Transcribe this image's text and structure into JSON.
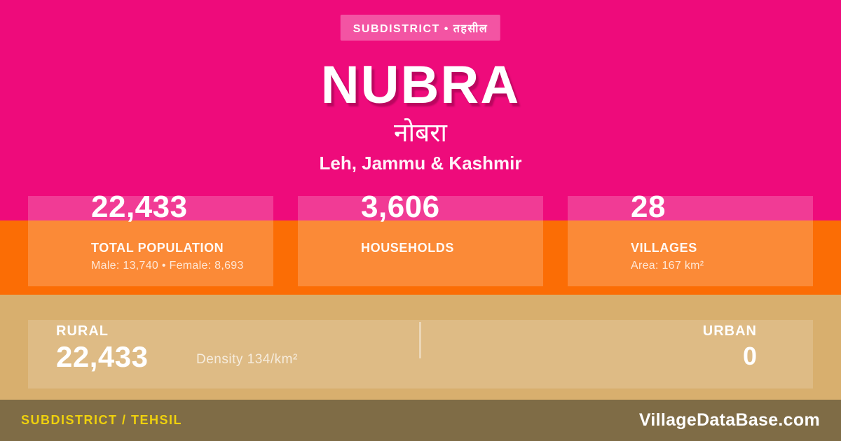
{
  "badge": {
    "label": "SUBDISTRICT • तहसील"
  },
  "header": {
    "title": "NUBRA",
    "title_native": "नोबरा",
    "subtitle": "Leh, Jammu & Kashmir"
  },
  "stats": [
    {
      "value": "22,433",
      "label": "TOTAL POPULATION",
      "detail": "Male: 13,740 • Female: 8,693"
    },
    {
      "value": "3,606",
      "label": "HOUSEHOLDS",
      "detail": ""
    },
    {
      "value": "28",
      "label": "VILLAGES",
      "detail": "Area: 167 km²"
    }
  ],
  "breakdown": {
    "rural_label": "RURAL",
    "rural_value": "22,433",
    "density": "Density 134/km²",
    "urban_label": "URBAN",
    "urban_value": "0"
  },
  "footer": {
    "left": "SUBDISTRICT / TEHSIL",
    "right": "VillageDataBase.com"
  },
  "colors": {
    "pink": "#EE0B7B",
    "orange": "#FB6D05",
    "tan": "#D8AF6E",
    "olive_bar": "#7F6C46",
    "yellow_text": "#EFD10D"
  }
}
